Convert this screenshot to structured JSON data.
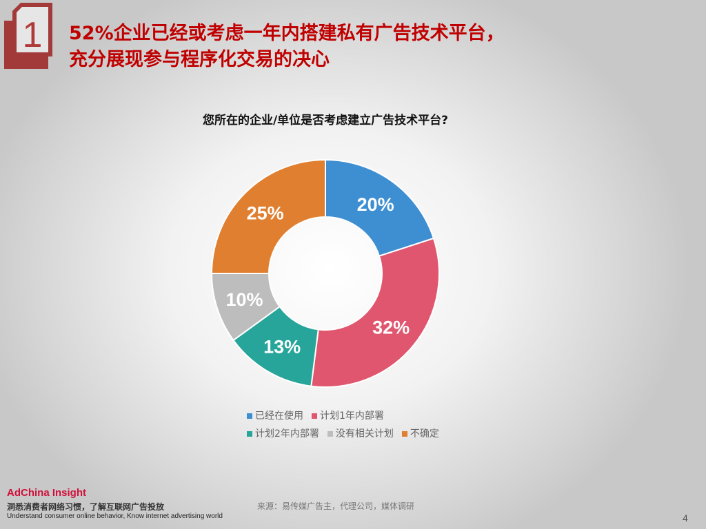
{
  "header": {
    "section_number": "1",
    "title_line1": "52%企业已经或考虑一年内搭建私有广告技术平台，",
    "title_line2": "充分展现参与程序化交易的决心"
  },
  "chart_data": {
    "type": "pie",
    "donut": true,
    "title": "您所在的企业/单位是否考虑建立广告技术平台?",
    "categories": [
      "已经在使用",
      "计划1年内部署",
      "计划2年内部署",
      "没有相关计划",
      "不确定"
    ],
    "values": [
      20,
      32,
      13,
      10,
      25
    ],
    "labels": [
      "20%",
      "32%",
      "13%",
      "10%",
      "25%"
    ],
    "colors": [
      "#3e8fd2",
      "#e0566f",
      "#27a59a",
      "#bdbdbd",
      "#e07f30"
    ],
    "legend_position": "bottom"
  },
  "footer": {
    "brand": "AdChina Insight",
    "slogan": "洞悉消费者网络习惯，了解互联网广告投放",
    "slogan_en": "Understand consumer online behavior, Know internet advertising world",
    "source": "来源：易传媒广告主，代理公司，媒体调研",
    "page_number": "4"
  }
}
